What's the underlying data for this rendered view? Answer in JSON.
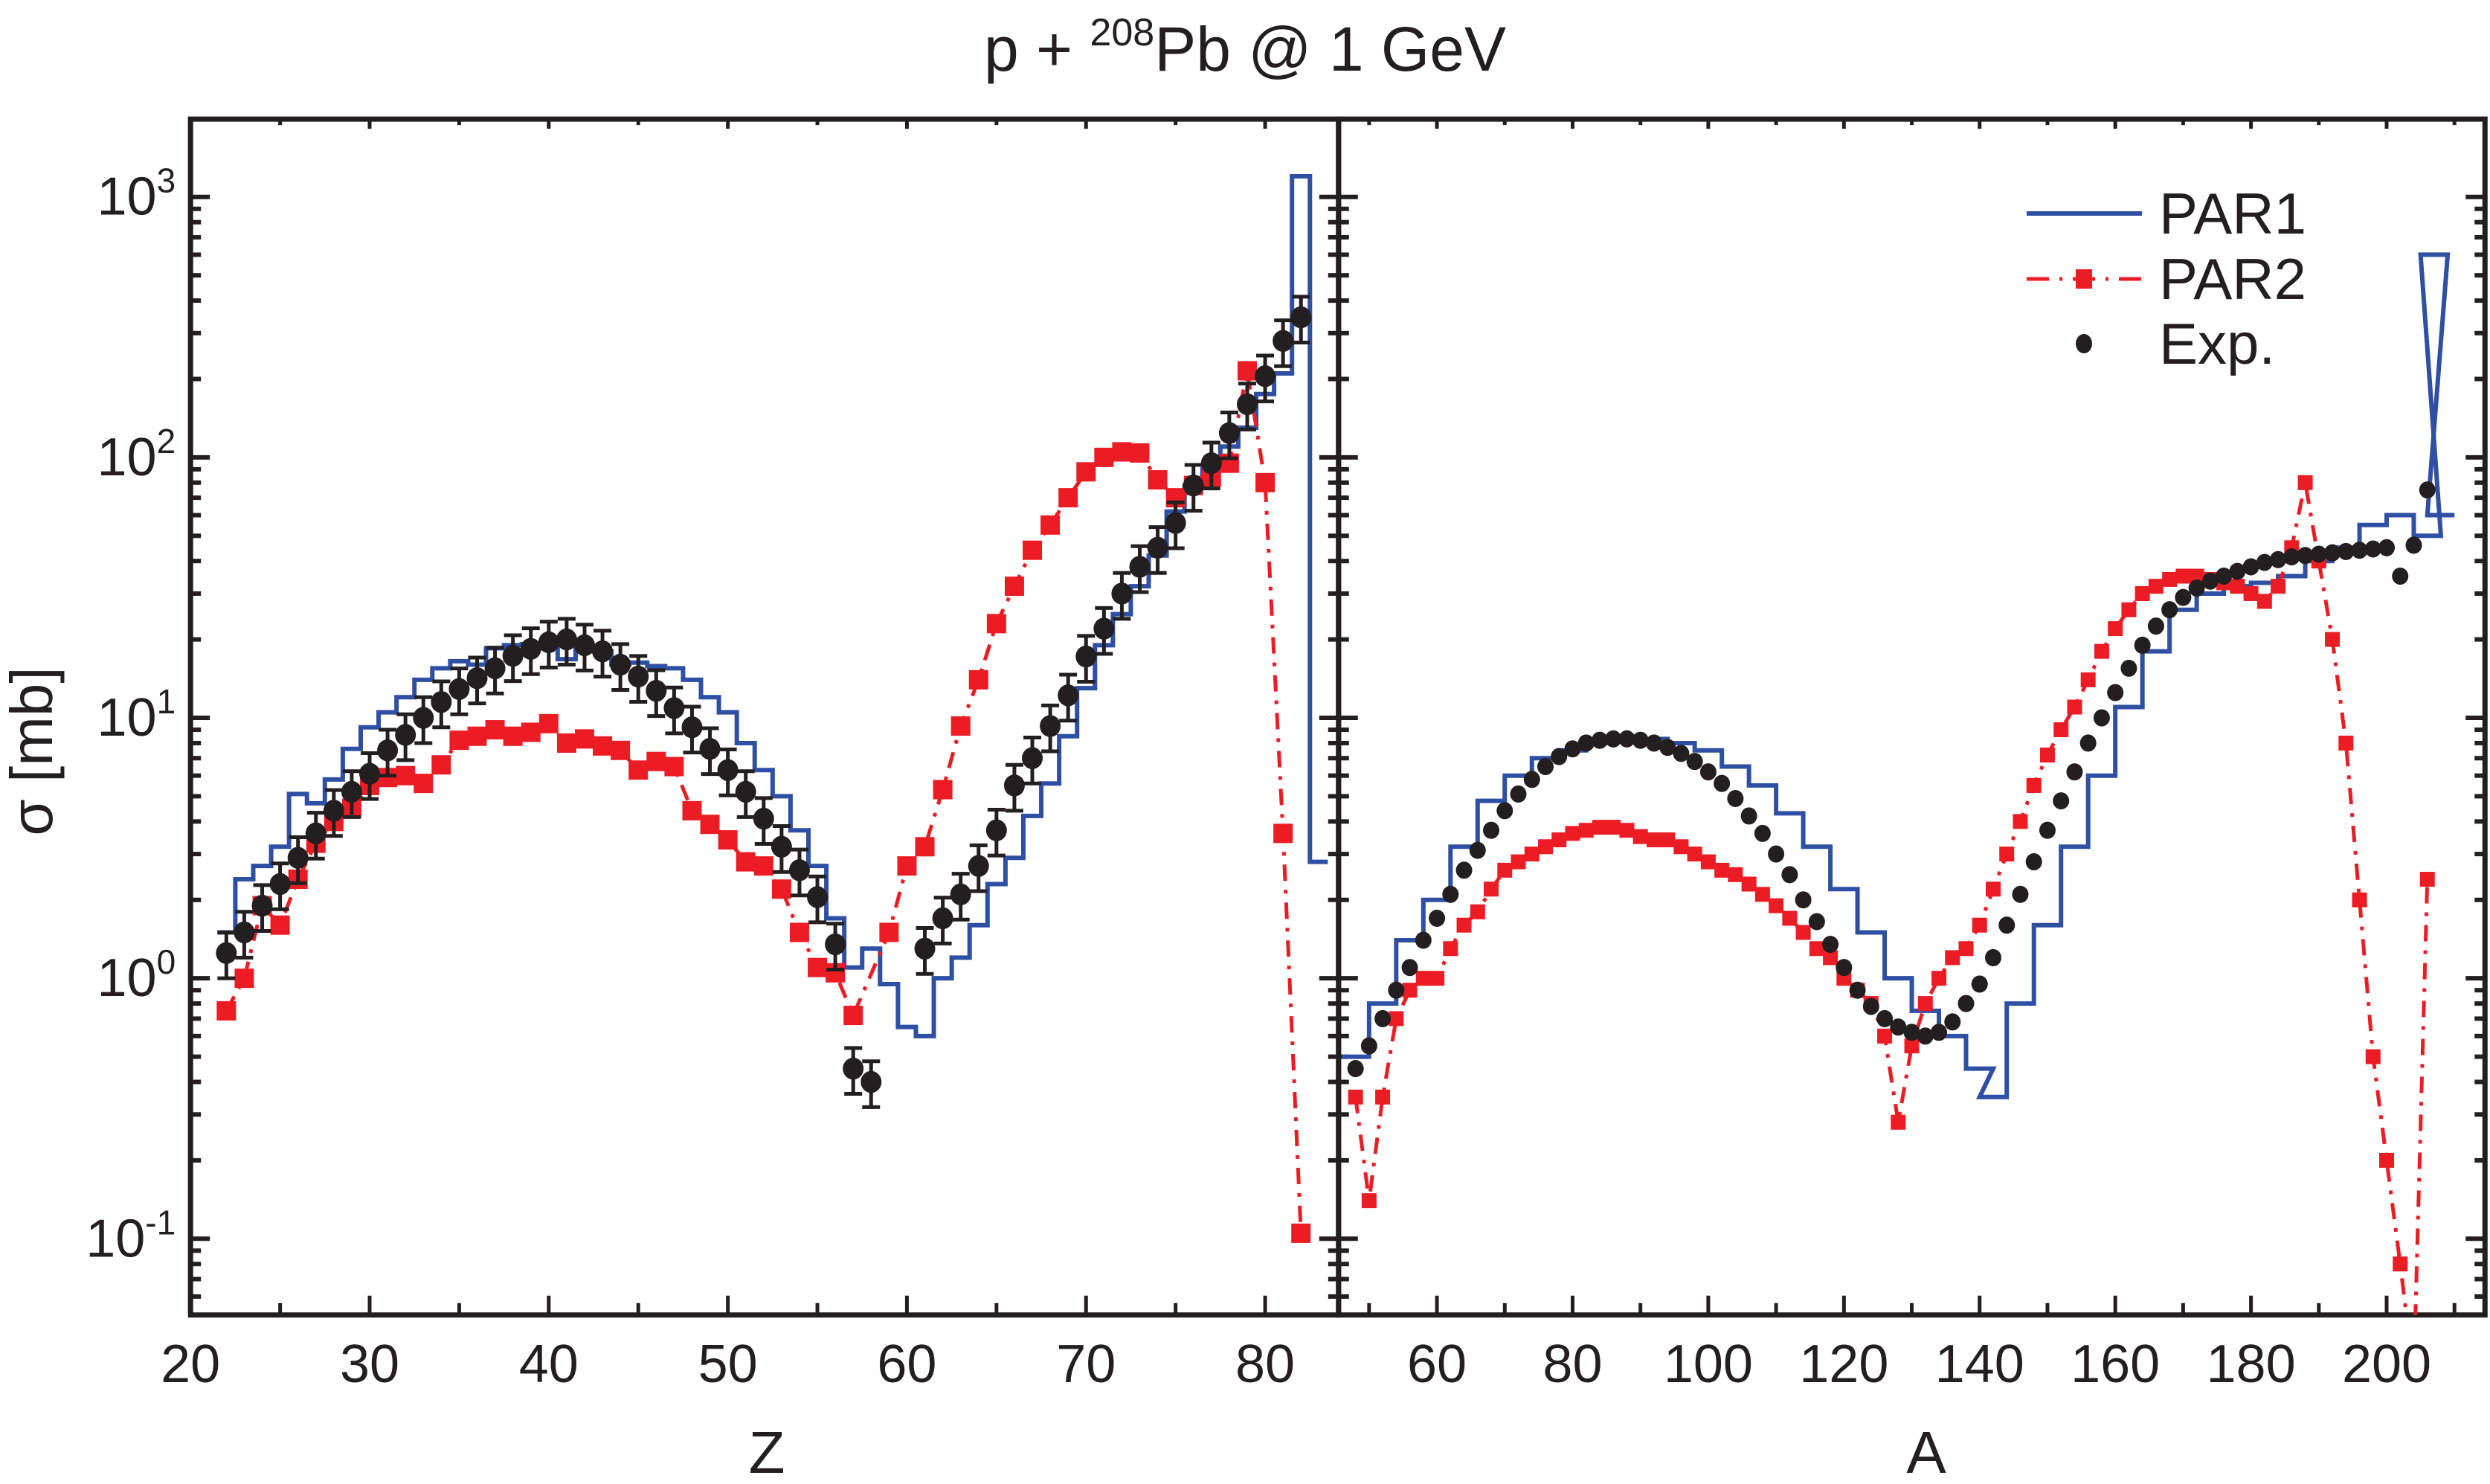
{
  "chart_data": {
    "type": "line",
    "title": "p + 208Pb @ 1 GeV",
    "title_parts": {
      "pre": "p + ",
      "sup": "208",
      "post": "Pb @ 1 GeV"
    },
    "ylabel": "σ [mb]",
    "yscale": "log",
    "ylim": [
      0.05,
      2000
    ],
    "ytick_labels": [
      {
        "base": "10",
        "exp": "3",
        "value": 1000
      },
      {
        "base": "10",
        "exp": "2",
        "value": 100
      },
      {
        "base": "10",
        "exp": "1",
        "value": 10
      },
      {
        "base": "10",
        "exp": "0",
        "value": 1
      },
      {
        "base": "10",
        "exp": "-1",
        "value": 0.1
      }
    ],
    "legend": {
      "placement": "top-right",
      "entries": [
        {
          "label": "PAR1",
          "style": "solid-line",
          "color": "#2e4fa3"
        },
        {
          "label": "PAR2",
          "style": "dash-dot-square",
          "color": "#ec1c24"
        },
        {
          "label": "Exp.",
          "style": "circle-errorbar",
          "color": "#231f20"
        }
      ]
    },
    "colors": {
      "PAR1": "#2e4fa3",
      "PAR2": "#ec1c24",
      "Exp": "#231f20",
      "axis": "#231f20"
    },
    "panels": [
      {
        "name": "Z",
        "xlabel": "Z",
        "xlim": [
          20,
          84.1
        ],
        "xticks": [
          20,
          30,
          40,
          50,
          60,
          70,
          80
        ],
        "xtick_labels": [
          "20",
          "30",
          "40",
          "50",
          "60",
          "70",
          "80"
        ],
        "series": [
          {
            "name": "PAR1",
            "kind": "step",
            "x": [
              22,
              23,
              24,
              25,
              26,
              27,
              28,
              29,
              30,
              31,
              32,
              33,
              34,
              35,
              36,
              37,
              38,
              39,
              40,
              41,
              42,
              43,
              44,
              45,
              46,
              47,
              48,
              49,
              50,
              51,
              52,
              53,
              54,
              55,
              56,
              57,
              58,
              59,
              60,
              61,
              62,
              63,
              64,
              65,
              66,
              67,
              68,
              69,
              70,
              71,
              72,
              73,
              74,
              75,
              76,
              77,
              78,
              79,
              80,
              81,
              82,
              83
            ],
            "values": [
              1.5,
              2.4,
              2.7,
              3.2,
              5.1,
              4.7,
              5.8,
              7.6,
              9.2,
              10.5,
              12.0,
              14.0,
              15.5,
              16.5,
              16.0,
              18.5,
              19.0,
              19.2,
              18.5,
              16.8,
              18.5,
              18.0,
              16.0,
              16.3,
              15.8,
              15.5,
              14.0,
              12.0,
              10.5,
              8.0,
              6.3,
              5.0,
              3.7,
              2.7,
              1.7,
              1.1,
              1.3,
              0.95,
              0.65,
              0.6,
              1.0,
              1.2,
              1.6,
              2.3,
              2.9,
              4.2,
              5.6,
              8.5,
              13.0,
              19.0,
              25.0,
              32.0,
              42.0,
              62.0,
              78.0,
              90.0,
              110.0,
              130.0,
              175.0,
              210.0,
              1200.0,
              2.8
            ]
          },
          {
            "name": "PAR2",
            "kind": "markers-dashdot",
            "x": [
              22,
              23,
              24,
              25,
              26,
              27,
              28,
              29,
              30,
              31,
              32,
              33,
              34,
              35,
              36,
              37,
              38,
              39,
              40,
              41,
              42,
              43,
              44,
              45,
              46,
              47,
              48,
              49,
              50,
              51,
              52,
              53,
              54,
              55,
              56,
              57,
              59,
              60,
              61,
              62,
              63,
              64,
              65,
              66,
              67,
              68,
              69,
              70,
              71,
              72,
              73,
              74,
              75,
              76,
              77,
              78,
              79,
              80,
              81,
              82
            ],
            "values": [
              0.75,
              1.0,
              1.9,
              1.6,
              2.4,
              3.3,
              4.0,
              4.5,
              5.5,
              5.9,
              6.0,
              5.6,
              6.6,
              8.2,
              8.5,
              9.0,
              8.5,
              8.8,
              9.5,
              8.0,
              8.3,
              7.8,
              7.5,
              6.3,
              6.8,
              6.5,
              4.4,
              3.9,
              3.4,
              2.8,
              2.7,
              2.2,
              1.5,
              1.1,
              1.05,
              0.72,
              1.5,
              2.7,
              3.2,
              5.3,
              9.3,
              14.0,
              23.0,
              32.0,
              44.0,
              55.0,
              70.0,
              88.0,
              100.0,
              105.0,
              104.0,
              82.0,
              70.0,
              78.0,
              84.0,
              95.0,
              215.0,
              80.0,
              3.6,
              0.105
            ]
          },
          {
            "name": "Exp.",
            "kind": "points-errorbars",
            "x": [
              22,
              23,
              24,
              25,
              26,
              27,
              28,
              29,
              30,
              31,
              32,
              33,
              34,
              35,
              36,
              37,
              38,
              39,
              40,
              41,
              42,
              43,
              44,
              45,
              46,
              47,
              48,
              49,
              50,
              51,
              52,
              53,
              54,
              55,
              56,
              57,
              58,
              61,
              62,
              63,
              64,
              65,
              66,
              67,
              68,
              69,
              70,
              71,
              72,
              73,
              74,
              75,
              76,
              77,
              78,
              79,
              80,
              81,
              82
            ],
            "values": [
              1.25,
              1.5,
              1.9,
              2.3,
              2.9,
              3.6,
              4.4,
              5.2,
              6.1,
              7.5,
              8.6,
              10.0,
              11.5,
              12.9,
              14.2,
              15.5,
              17.3,
              18.4,
              19.5,
              20.0,
              19.0,
              18.0,
              16.0,
              14.4,
              12.7,
              10.9,
              9.2,
              7.6,
              6.3,
              5.2,
              4.1,
              3.2,
              2.6,
              2.05,
              1.35,
              0.45,
              0.4,
              1.3,
              1.7,
              2.1,
              2.7,
              3.7,
              5.5,
              7.0,
              9.3,
              12.2,
              17.2,
              22.0,
              30.0,
              38.0,
              45.0,
              56.0,
              78.0,
              95.0,
              124.0,
              160.0,
              205.0,
              280.0,
              345.0
            ],
            "rel_err": 0.2
          }
        ]
      },
      {
        "name": "A",
        "xlabel": "A",
        "xlim": [
          45.5,
          214.5
        ],
        "xticks": [
          60,
          80,
          100,
          120,
          140,
          160,
          180,
          200
        ],
        "xtick_labels": [
          "60",
          "80",
          "100",
          "120",
          "140",
          "160",
          "180",
          "200"
        ],
        "series": [
          {
            "name": "PAR1",
            "kind": "step",
            "x": [
              48,
              52,
              56,
              60,
              64,
              68,
              72,
              76,
              80,
              84,
              88,
              92,
              96,
              100,
              104,
              108,
              112,
              116,
              120,
              124,
              128,
              132,
              136,
              140,
              142,
              146,
              150,
              154,
              158,
              162,
              166,
              170,
              174,
              178,
              182,
              186,
              190,
              194,
              198,
              202,
              206,
              207,
              208
            ],
            "values": [
              0.5,
              0.8,
              1.4,
              2.0,
              3.2,
              4.8,
              6.0,
              7.0,
              7.5,
              8.0,
              8.5,
              8.3,
              8.0,
              7.5,
              6.5,
              5.5,
              4.3,
              3.2,
              2.2,
              1.5,
              1.0,
              0.75,
              0.6,
              0.45,
              0.35,
              0.8,
              1.6,
              3.2,
              6.0,
              11.0,
              18.0,
              26.0,
              30.0,
              32.0,
              33.0,
              35.0,
              40.0,
              45.0,
              55.0,
              60.0,
              50.0,
              600.0,
              60.0
            ]
          },
          {
            "name": "PAR2",
            "kind": "markers-dashdot",
            "x": [
              48,
              50,
              52,
              54,
              56,
              58,
              60,
              62,
              64,
              66,
              68,
              70,
              72,
              74,
              76,
              78,
              80,
              82,
              84,
              86,
              88,
              90,
              92,
              94,
              96,
              98,
              100,
              102,
              104,
              106,
              108,
              110,
              112,
              114,
              116,
              118,
              120,
              122,
              124,
              126,
              128,
              130,
              132,
              134,
              136,
              138,
              140,
              142,
              144,
              146,
              148,
              150,
              152,
              154,
              156,
              158,
              160,
              162,
              164,
              166,
              168,
              170,
              172,
              174,
              176,
              178,
              180,
              182,
              184,
              186,
              188,
              190,
              192,
              194,
              196,
              198,
              200,
              202,
              204,
              206
            ],
            "values": [
              0.35,
              0.14,
              0.35,
              0.7,
              0.9,
              1.0,
              1.0,
              1.3,
              1.6,
              1.8,
              2.2,
              2.6,
              2.8,
              3.0,
              3.2,
              3.4,
              3.6,
              3.7,
              3.8,
              3.8,
              3.7,
              3.5,
              3.4,
              3.4,
              3.2,
              3.0,
              2.8,
              2.6,
              2.5,
              2.3,
              2.1,
              1.9,
              1.7,
              1.5,
              1.3,
              1.2,
              1.0,
              0.9,
              0.8,
              0.6,
              0.28,
              0.55,
              0.8,
              1.0,
              1.2,
              1.3,
              1.6,
              2.2,
              3.0,
              4.0,
              5.5,
              7.2,
              9.0,
              11.0,
              14.0,
              18.0,
              22.0,
              26.0,
              30.0,
              32.0,
              34.0,
              35.0,
              35.0,
              34.0,
              33.0,
              32.0,
              30.0,
              28.0,
              32.0,
              45.0,
              80.0,
              40.0,
              20.0,
              8.0,
              2.0,
              0.5,
              0.2,
              0.08,
              0.03,
              2.4
            ]
          },
          {
            "name": "Exp.",
            "kind": "points-errorbars",
            "x": [
              48,
              50,
              52,
              54,
              56,
              58,
              60,
              62,
              64,
              66,
              68,
              70,
              72,
              74,
              76,
              78,
              80,
              82,
              84,
              86,
              88,
              90,
              92,
              94,
              96,
              98,
              100,
              102,
              104,
              106,
              108,
              110,
              112,
              114,
              116,
              118,
              120,
              122,
              124,
              126,
              128,
              130,
              132,
              134,
              136,
              138,
              140,
              142,
              144,
              146,
              148,
              150,
              152,
              154,
              156,
              158,
              160,
              162,
              164,
              166,
              168,
              170,
              172,
              174,
              176,
              178,
              180,
              182,
              184,
              186,
              188,
              190,
              192,
              194,
              196,
              198,
              200,
              202,
              204,
              206
            ],
            "values": [
              0.45,
              0.55,
              0.7,
              0.9,
              1.1,
              1.4,
              1.7,
              2.1,
              2.6,
              3.1,
              3.7,
              4.4,
              5.1,
              5.8,
              6.5,
              7.1,
              7.6,
              8.0,
              8.2,
              8.3,
              8.3,
              8.2,
              8.0,
              7.7,
              7.3,
              6.8,
              6.2,
              5.6,
              4.9,
              4.2,
              3.6,
              3.0,
              2.5,
              2.0,
              1.65,
              1.35,
              1.1,
              0.9,
              0.78,
              0.7,
              0.65,
              0.62,
              0.6,
              0.62,
              0.68,
              0.8,
              0.95,
              1.2,
              1.6,
              2.1,
              2.8,
              3.7,
              4.8,
              6.2,
              8.0,
              10.0,
              12.5,
              15.5,
              19.0,
              22.5,
              26.0,
              29.0,
              31.5,
              33.5,
              35.0,
              36.5,
              38.0,
              39.5,
              40.5,
              41.5,
              42.0,
              42.5,
              43.0,
              43.5,
              44.0,
              44.5,
              45.0,
              35.0,
              46.0,
              75.0
            ],
            "rel_err": 0.05
          }
        ]
      }
    ]
  }
}
